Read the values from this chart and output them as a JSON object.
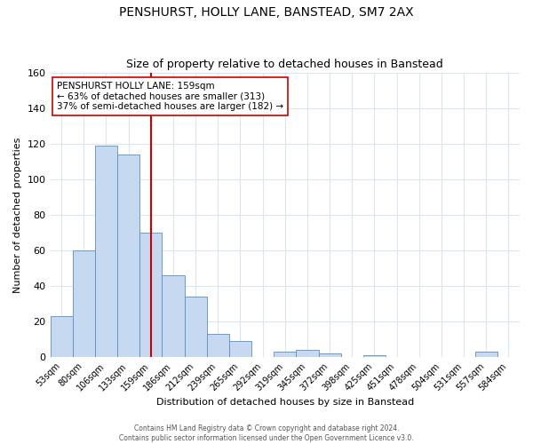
{
  "title": "PENSHURST, HOLLY LANE, BANSTEAD, SM7 2AX",
  "subtitle": "Size of property relative to detached houses in Banstead",
  "xlabel": "Distribution of detached houses by size in Banstead",
  "ylabel": "Number of detached properties",
  "bar_labels": [
    "53sqm",
    "80sqm",
    "106sqm",
    "133sqm",
    "159sqm",
    "186sqm",
    "212sqm",
    "239sqm",
    "265sqm",
    "292sqm",
    "319sqm",
    "345sqm",
    "372sqm",
    "398sqm",
    "425sqm",
    "451sqm",
    "478sqm",
    "504sqm",
    "531sqm",
    "557sqm",
    "584sqm"
  ],
  "bar_values": [
    23,
    60,
    119,
    114,
    70,
    46,
    34,
    13,
    9,
    0,
    3,
    4,
    2,
    0,
    1,
    0,
    0,
    0,
    0,
    3,
    0
  ],
  "bar_color": "#c6d9f0",
  "bar_edge_color": "#5a8fc2",
  "vline_x": 4.5,
  "vline_color": "#cc0000",
  "annotation_text": "PENSHURST HOLLY LANE: 159sqm\n← 63% of detached houses are smaller (313)\n37% of semi-detached houses are larger (182) →",
  "annotation_box_color": "#ffffff",
  "annotation_box_edge": "#cc0000",
  "ylim": [
    0,
    160
  ],
  "yticks": [
    0,
    20,
    40,
    60,
    80,
    100,
    120,
    140,
    160
  ],
  "footer_line1": "Contains HM Land Registry data © Crown copyright and database right 2024.",
  "footer_line2": "Contains public sector information licensed under the Open Government Licence v3.0.",
  "background_color": "#ffffff",
  "grid_color": "#dce6f0",
  "title_fontsize": 10,
  "subtitle_fontsize": 9,
  "axis_label_fontsize": 8,
  "tick_fontsize": 7,
  "annotation_fontsize": 7.5,
  "footer_fontsize": 5.5
}
